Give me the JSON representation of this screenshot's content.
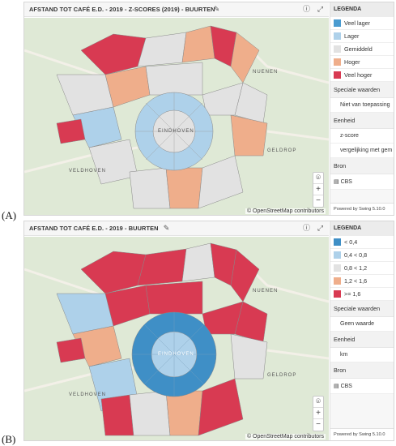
{
  "figure_labels": {
    "a": "(A)",
    "b": "(B)"
  },
  "colors": {
    "very_low": "#4a9bd0",
    "low": "#aed1ea",
    "avg": "#e2e2e2",
    "high": "#efae8b",
    "very_high": "#d83a52",
    "background": "#dfe9d6"
  },
  "panel_a": {
    "title": "AFSTAND TOT CAFÉ E.D. - 2019 - Z-SCORES (2019) - BUURTEN",
    "edit_icon": "pencil-icon",
    "info_icon": "info-icon",
    "expand_icon": "expand-icon",
    "map_labels": {
      "city": "EINDHOVEN",
      "nuenen": "NUENEN",
      "geldrop": "GELDROP",
      "veldhoven": "VELDHOVEN"
    },
    "attribution": "© OpenStreetMap contributors",
    "zoom_in": "+",
    "zoom_out": "−",
    "locate_icon": "location-pin-icon",
    "legend": {
      "heading": "LEGENDA",
      "items": [
        {
          "label": "Veel lager",
          "color": "#4a9bd0"
        },
        {
          "label": "Lager",
          "color": "#aed1ea"
        },
        {
          "label": "Gemiddeld",
          "color": "#e2e2e2"
        },
        {
          "label": "Hoger",
          "color": "#efae8b"
        },
        {
          "label": "Veel hoger",
          "color": "#d83a52"
        }
      ],
      "special_heading": "Speciale waarden",
      "special_value": "Niet van toepassing",
      "unit_heading": "Eenheid",
      "unit_value_1": "z-score",
      "unit_value_2": "vergelijking met gem",
      "source_heading": "Bron",
      "source_value": "CBS",
      "powered": "Powered by Swing 5.10.0"
    }
  },
  "panel_b": {
    "title": "AFSTAND TOT CAFÉ E.D. - 2019 - BUURTEN",
    "edit_icon": "pencil-icon",
    "info_icon": "info-icon",
    "expand_icon": "expand-icon",
    "map_labels": {
      "city": "EINDHOVEN",
      "nuenen": "NUENEN",
      "geldrop": "GELDROP",
      "veldhoven": "VELDHOVEN"
    },
    "attribution": "© OpenStreetMap contributors",
    "zoom_in": "+",
    "zoom_out": "−",
    "locate_icon": "location-pin-icon",
    "legend": {
      "heading": "LEGENDA",
      "items": [
        {
          "label": "< 0,4",
          "color": "#3f8fc6"
        },
        {
          "label": "0,4 < 0,8",
          "color": "#aed1ea"
        },
        {
          "label": "0,8 < 1,2",
          "color": "#e2e2e2"
        },
        {
          "label": "1,2 < 1,6",
          "color": "#efae8b"
        },
        {
          "label": ">= 1,6",
          "color": "#d83a52"
        }
      ],
      "special_heading": "Speciale waarden",
      "special_value": "Geen waarde",
      "unit_heading": "Eenheid",
      "unit_value_1": "km",
      "source_heading": "Bron",
      "source_value": "CBS",
      "powered": "Powered by Swing 5.10.0"
    }
  }
}
